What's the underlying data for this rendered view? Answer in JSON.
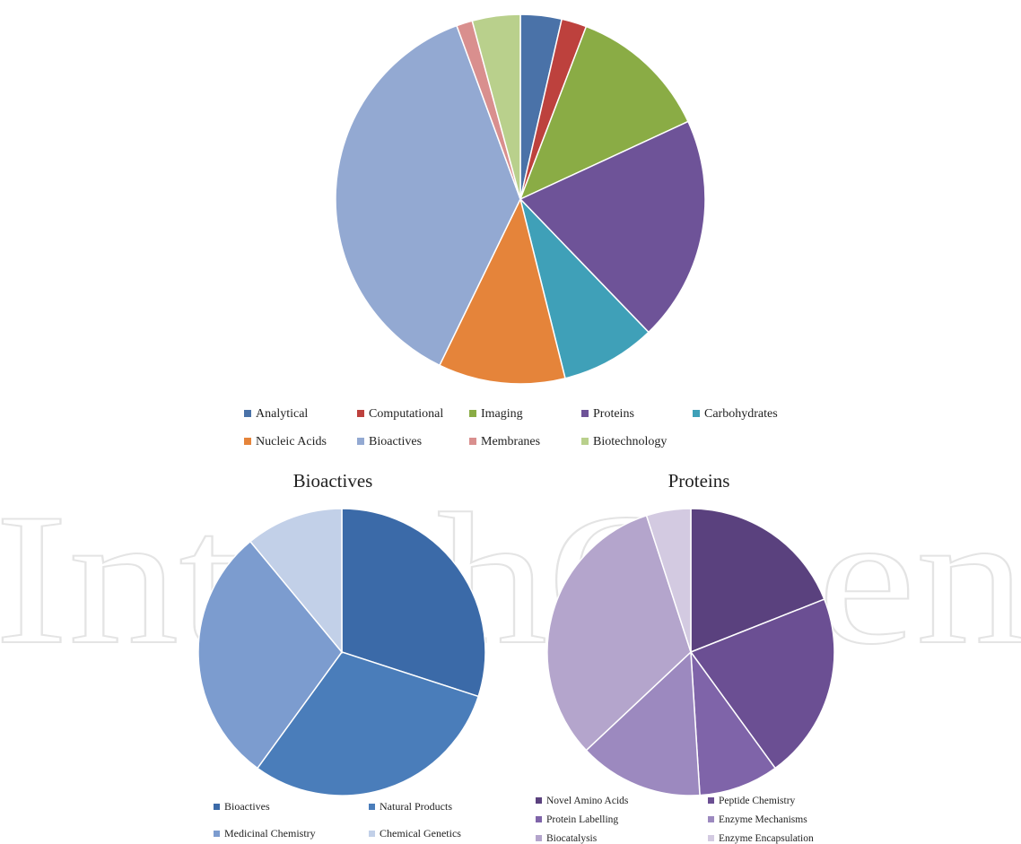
{
  "watermark_text": "IntechOpen",
  "chart_data": [
    {
      "type": "pie",
      "title": "",
      "legend_position": "bottom",
      "labels": [
        "Analytical",
        "Computational",
        "Imaging",
        "Proteins",
        "Carbohydrates",
        "Nucleic Acids",
        "Bioactives",
        "Membranes",
        "Biotechnology"
      ],
      "values": [
        3.6,
        2.2,
        12.3,
        19.7,
        8.3,
        11.1,
        37.2,
        1.4,
        4.2
      ],
      "colors": [
        "#4a72a8",
        "#bd413d",
        "#8aac45",
        "#6e5398",
        "#3fa0b8",
        "#e5843a",
        "#93a9d2",
        "#d98f8e",
        "#b9d08c"
      ]
    },
    {
      "type": "pie",
      "title": "Bioactives",
      "legend_position": "bottom",
      "labels": [
        "Bioactives",
        "Natural Products",
        "Medicinal Chemistry",
        "Chemical Genetics"
      ],
      "values": [
        30,
        30,
        29,
        11
      ],
      "colors": [
        "#3b6aa8",
        "#4a7dba",
        "#7c9ccf",
        "#c2d0e8"
      ]
    },
    {
      "type": "pie",
      "title": "Proteins",
      "legend_position": "bottom",
      "labels": [
        "Novel Amino Acids",
        "Peptide Chemistry",
        "Protein Labelling",
        "Enzyme Mechanisms",
        "Biocatalysis",
        "Enzyme Encapsulation"
      ],
      "values": [
        19,
        21,
        9,
        14,
        32,
        5
      ],
      "colors": [
        "#5a417e",
        "#6b4f93",
        "#7f64a9",
        "#9c89bf",
        "#b4a5cc",
        "#d3cae1"
      ]
    }
  ]
}
